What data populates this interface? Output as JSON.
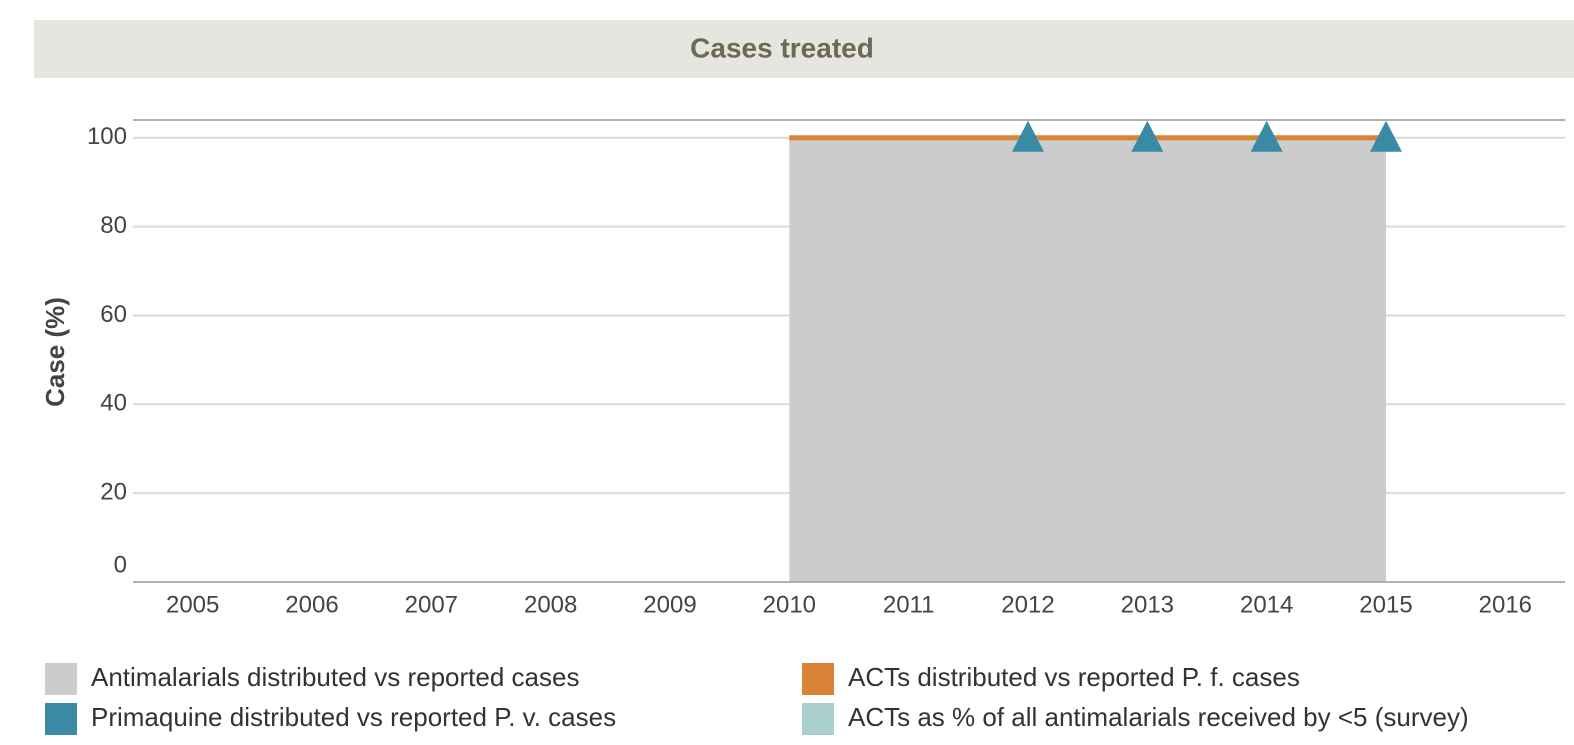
{
  "chart_data": {
    "type": "line",
    "title": "Cases treated",
    "y_label": "Case (%)",
    "x": [
      2005,
      2006,
      2007,
      2008,
      2009,
      2010,
      2011,
      2012,
      2013,
      2014,
      2015,
      2016
    ],
    "xlim": [
      2004.5,
      2016.5
    ],
    "xticks": [
      2005,
      2006,
      2007,
      2008,
      2009,
      2010,
      2011,
      2012,
      2013,
      2014,
      2015,
      2016
    ],
    "ylim": [
      0,
      104
    ],
    "yticks": [
      0,
      20,
      40,
      60,
      80,
      100
    ],
    "grid": true,
    "legend": "bottom",
    "series": [
      {
        "name": "Antimalarials distributed vs reported cases",
        "type": "area",
        "color": "#cccccc",
        "values": [
          null,
          null,
          null,
          null,
          null,
          100,
          100,
          100,
          100,
          100,
          100,
          null
        ]
      },
      {
        "name": "ACTs distributed vs reported P. f. cases",
        "type": "line",
        "color": "#d98336",
        "values": [
          null,
          null,
          null,
          null,
          null,
          100,
          100,
          100,
          100,
          100,
          100,
          null
        ]
      },
      {
        "name": "Primaquine distributed vs reported P. v. cases",
        "type": "scatter",
        "color": "#3a8aa6",
        "values": [
          null,
          null,
          null,
          null,
          null,
          null,
          null,
          100,
          100,
          100,
          100,
          null
        ]
      },
      {
        "name": "ACTs as % of all antimalarials received by <5 (survey)",
        "type": "scatter",
        "color": "#a9cfcf",
        "values": [
          null,
          null,
          null,
          null,
          null,
          null,
          null,
          null,
          null,
          null,
          null,
          null
        ]
      }
    ]
  }
}
